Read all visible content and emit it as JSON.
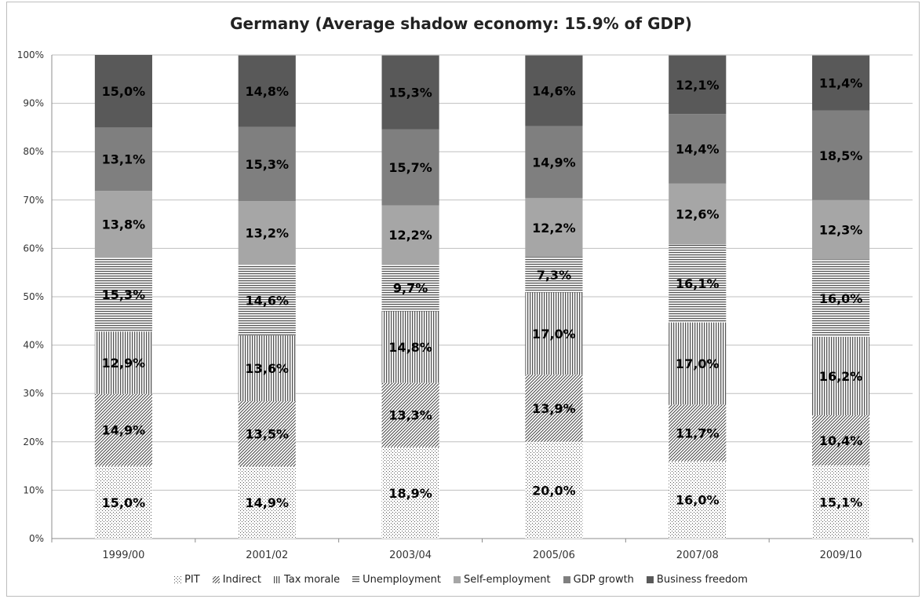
{
  "chart_data": {
    "type": "bar",
    "stacked": true,
    "title": "Germany (Average shadow economy: 15.9% of GDP)",
    "categories": [
      "1999/00",
      "2001/02",
      "2003/04",
      "2005/06",
      "2007/08",
      "2009/10"
    ],
    "y_ticks": [
      "0%",
      "10%",
      "20%",
      "30%",
      "40%",
      "50%",
      "60%",
      "70%",
      "80%",
      "90%",
      "100%"
    ],
    "ylim": [
      0,
      100
    ],
    "grid": true,
    "legend_position": "bottom",
    "series": [
      {
        "name": "PIT",
        "values": [
          15.0,
          14.9,
          18.9,
          20.0,
          16.0,
          15.1
        ],
        "labels": [
          "15,0%",
          "14,9%",
          "18,9%",
          "20,0%",
          "16,0%",
          "15,1%"
        ],
        "pattern": "dots",
        "color": "#ffffff"
      },
      {
        "name": "Indirect",
        "values": [
          14.9,
          13.5,
          13.3,
          13.9,
          11.7,
          10.4
        ],
        "labels": [
          "14,9%",
          "13,5%",
          "13,3%",
          "13,9%",
          "11,7%",
          "10,4%"
        ],
        "pattern": "diagonal",
        "color": "#ffffff"
      },
      {
        "name": "Tax morale",
        "values": [
          12.9,
          13.6,
          14.8,
          17.0,
          17.0,
          16.2
        ],
        "labels": [
          "12,9%",
          "13,6%",
          "14,8%",
          "17,0%",
          "17,0%",
          "16,2%"
        ],
        "pattern": "vertical",
        "color": "#ffffff"
      },
      {
        "name": "Unemployment",
        "values": [
          15.3,
          14.6,
          9.7,
          7.3,
          16.1,
          16.0
        ],
        "labels": [
          "15,3%",
          "14,6%",
          "9,7%",
          "7,3%",
          "16,1%",
          "16,0%"
        ],
        "pattern": "horizontal",
        "color": "#ffffff"
      },
      {
        "name": "Self-employment",
        "values": [
          13.8,
          13.2,
          12.2,
          12.2,
          12.6,
          12.3
        ],
        "labels": [
          "13,8%",
          "13,2%",
          "12,2%",
          "12,2%",
          "12,6%",
          "12,3%"
        ],
        "pattern": "solid",
        "color": "#a6a6a6"
      },
      {
        "name": "GDP growth",
        "values": [
          13.1,
          15.3,
          15.7,
          14.9,
          14.4,
          18.5
        ],
        "labels": [
          "13,1%",
          "15,3%",
          "15,7%",
          "14,9%",
          "14,4%",
          "18,5%"
        ],
        "pattern": "solid",
        "color": "#7f7f7f"
      },
      {
        "name": "Business freedom",
        "values": [
          15.0,
          14.8,
          15.3,
          14.6,
          12.1,
          11.4
        ],
        "labels": [
          "15,0%",
          "14,8%",
          "15,3%",
          "14,6%",
          "12,1%",
          "11,4%"
        ],
        "pattern": "solid",
        "color": "#595959"
      }
    ]
  }
}
